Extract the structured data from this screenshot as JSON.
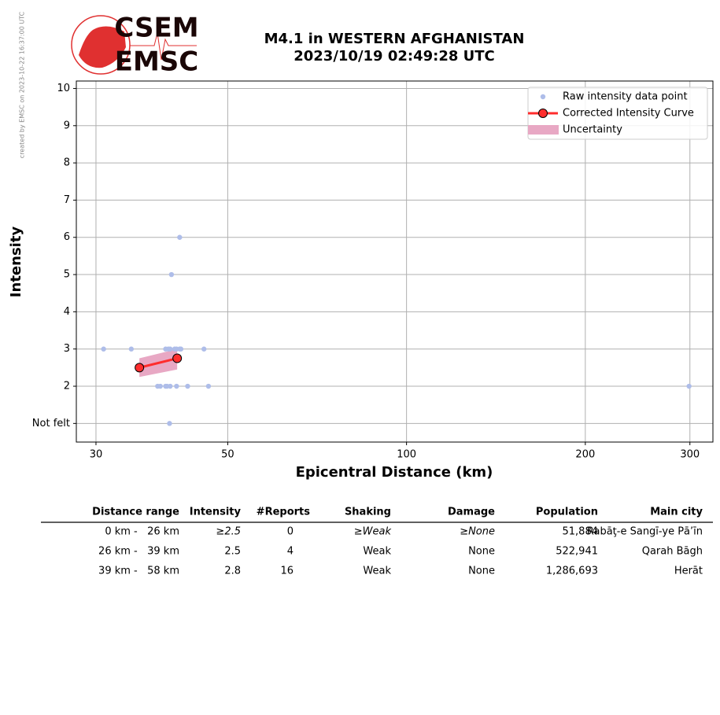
{
  "credit": "created by EMSC on 2023-10-22 16:37:00 UTC",
  "logo": {
    "top": "CSEM",
    "bottom": "EMSC"
  },
  "chart_data": {
    "type": "scatter",
    "title": "M4.1 in WESTERN AFGHANISTAN",
    "subtitle": "2023/10/19 02:49:28 UTC",
    "x_label": "Epicentral Distance (km)",
    "y_label": "Intensity",
    "xscale": "log",
    "xlim": [
      27.8,
      328
    ],
    "xticks": [
      30,
      50,
      100,
      200,
      300
    ],
    "ylim": [
      0.5,
      10.2
    ],
    "yticks": [
      {
        "value": 1,
        "label": "Not felt"
      },
      2,
      3,
      4,
      5,
      6,
      7,
      8,
      9,
      10
    ],
    "grid": true,
    "legend": "upper right",
    "series": [
      {
        "name": "Raw intensity data point",
        "type": "scatter",
        "color": "#aebde9",
        "x": [
          30.9,
          34.4,
          39.3,
          39.7,
          40.0,
          40.7,
          41.0,
          41.5,
          41.7,
          45.6,
          40.2,
          41.5,
          38.1,
          38.5,
          39.3,
          39.5,
          40.0,
          41.0,
          42.8,
          46.4,
          299,
          39.9
        ],
        "values": [
          3,
          3,
          3,
          3,
          3,
          3,
          3,
          3,
          3,
          3,
          5,
          6,
          2,
          2,
          2,
          2,
          2,
          2,
          2,
          2,
          2,
          1
        ]
      },
      {
        "name": "Corrected Intensity Curve",
        "type": "line",
        "color": "#ff2d2d",
        "x": [
          35.5,
          41.1
        ],
        "values": [
          2.5,
          2.75
        ]
      },
      {
        "name": "Uncertainty",
        "type": "band",
        "color": "#e8a8c4",
        "x": [
          35.5,
          41.1
        ],
        "lower": [
          2.25,
          2.45
        ],
        "upper": [
          2.75,
          3.0
        ]
      }
    ]
  },
  "table": {
    "columns": [
      "Distance range",
      "Intensity",
      "#Reports",
      "Shaking",
      "Damage",
      "Population",
      "Main city"
    ],
    "rows": [
      [
        "0 km -   26 km",
        "≥2.5",
        "0",
        "≥Weak",
        "≥None",
        "51,884",
        "Rabāţ-e Sangī-ye Pā’īn"
      ],
      [
        "26 km -   39 km",
        "2.5",
        "4",
        "Weak",
        "None",
        "522,941",
        "Qarah Bāgh"
      ],
      [
        "39 km -   58 km",
        "2.8",
        "16",
        "Weak",
        "None",
        "1,286,693",
        "Herāt"
      ]
    ]
  }
}
